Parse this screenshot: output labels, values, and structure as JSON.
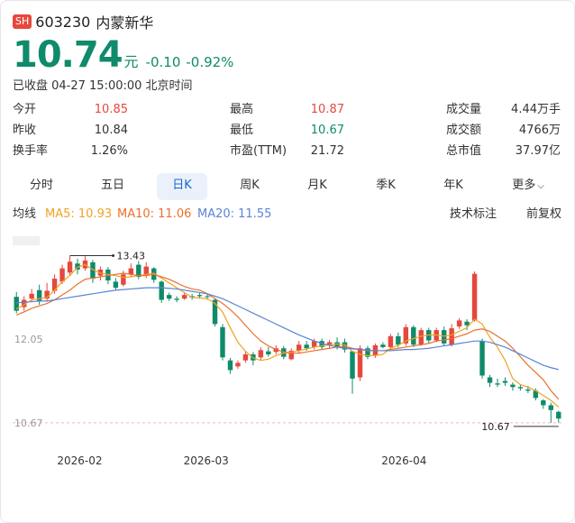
{
  "header": {
    "exchange": "SH",
    "code": "603230",
    "name": "内蒙新华"
  },
  "quote": {
    "price": "10.74",
    "unit": "元",
    "change": "-0.10",
    "change_pct": "-0.92%"
  },
  "status": "已收盘 04-27 15:00:00 北京时间",
  "stats": [
    {
      "label": "今开",
      "value": "10.85",
      "color": "red"
    },
    {
      "label": "最高",
      "value": "10.87",
      "color": "red"
    },
    {
      "label": "成交量",
      "value": "4.44万手",
      "color": "dark"
    },
    {
      "label": "昨收",
      "value": "10.84",
      "color": "dark"
    },
    {
      "label": "最低",
      "value": "10.67",
      "color": "green"
    },
    {
      "label": "成交额",
      "value": "4766万",
      "color": "dark"
    },
    {
      "label": "换手率",
      "value": "1.26%",
      "color": "dark"
    },
    {
      "label": "市盈(TTM)",
      "value": "21.72",
      "color": "dark"
    },
    {
      "label": "总市值",
      "value": "37.97亿",
      "color": "dark"
    }
  ],
  "tabs": [
    "分时",
    "五日",
    "日K",
    "周K",
    "月K",
    "季K",
    "年K",
    "更多"
  ],
  "active_tab": "日K",
  "ma": {
    "label": "均线",
    "ma5": "MA5: 10.93",
    "ma10": "MA10: 11.06",
    "ma20": "MA20: 11.55",
    "tech": "技术标注",
    "adjust": "前复权"
  },
  "colors": {
    "up": "#e5483d",
    "down": "#0f8b6b",
    "ma5": "#f0a322",
    "ma10": "#e8712e",
    "ma20": "#5b84d6"
  },
  "chart_data": {
    "type": "candlestick",
    "y_ticks": [
      "12.05",
      "10.67"
    ],
    "x_labels": [
      "2026-02",
      "2026-03",
      "2026-04"
    ],
    "annotations": {
      "high": "13.43",
      "low": "10.67"
    },
    "ylim": [
      10.4,
      13.75
    ],
    "candles": [
      [
        12.75,
        12.52,
        12.83,
        12.48
      ],
      [
        12.58,
        12.7,
        12.76,
        12.52
      ],
      [
        12.72,
        12.8,
        12.88,
        12.66
      ],
      [
        12.86,
        12.68,
        12.95,
        12.62
      ],
      [
        12.72,
        12.85,
        12.98,
        12.68
      ],
      [
        12.85,
        13.05,
        13.12,
        12.8
      ],
      [
        13.0,
        13.22,
        13.28,
        12.96
      ],
      [
        13.15,
        13.33,
        13.43,
        13.1
      ],
      [
        13.3,
        13.2,
        13.38,
        13.12
      ],
      [
        13.22,
        13.35,
        13.42,
        13.18
      ],
      [
        13.32,
        13.05,
        13.36,
        12.98
      ],
      [
        13.1,
        13.2,
        13.25,
        13.02
      ],
      [
        13.2,
        13.02,
        13.24,
        12.96
      ],
      [
        13.0,
        12.9,
        13.06,
        12.86
      ],
      [
        12.95,
        13.12,
        13.18,
        12.92
      ],
      [
        13.12,
        13.22,
        13.3,
        13.08
      ],
      [
        13.28,
        13.08,
        13.34,
        13.04
      ],
      [
        13.1,
        13.25,
        13.32,
        13.06
      ],
      [
        13.22,
        13.03,
        13.24,
        12.98
      ],
      [
        13.0,
        12.7,
        13.02,
        12.65
      ],
      [
        12.78,
        12.72,
        12.82,
        12.68
      ],
      [
        12.72,
        12.7,
        12.76,
        12.66
      ],
      [
        12.72,
        12.78,
        12.82,
        12.7
      ],
      [
        12.76,
        12.74,
        12.8,
        12.7
      ],
      [
        12.78,
        12.76,
        12.82,
        12.72
      ],
      [
        12.76,
        12.75,
        12.8,
        12.7
      ],
      [
        12.7,
        12.3,
        12.72,
        12.26
      ],
      [
        12.25,
        11.75,
        12.3,
        11.7
      ],
      [
        11.7,
        11.54,
        11.74,
        11.48
      ],
      [
        11.6,
        11.66,
        11.7,
        11.56
      ],
      [
        11.7,
        11.8,
        11.86,
        11.66
      ],
      [
        11.8,
        11.7,
        11.84,
        11.62
      ],
      [
        11.75,
        11.87,
        11.92,
        11.7
      ],
      [
        11.85,
        11.8,
        11.92,
        11.76
      ],
      [
        11.84,
        11.9,
        11.95,
        11.8
      ],
      [
        11.9,
        11.76,
        11.94,
        11.72
      ],
      [
        11.72,
        11.86,
        11.9,
        11.7
      ],
      [
        11.86,
        11.96,
        12.02,
        11.82
      ],
      [
        11.96,
        11.9,
        12.02,
        11.86
      ],
      [
        11.92,
        12.02,
        12.06,
        11.88
      ],
      [
        12.02,
        11.92,
        12.06,
        11.88
      ],
      [
        11.95,
        12.0,
        12.04,
        11.9
      ],
      [
        12.0,
        11.93,
        12.08,
        11.88
      ],
      [
        12.0,
        11.88,
        12.06,
        11.83
      ],
      [
        11.85,
        11.4,
        11.86,
        11.15
      ],
      [
        11.42,
        11.9,
        11.95,
        11.36
      ],
      [
        11.9,
        11.76,
        11.94,
        11.72
      ],
      [
        11.78,
        11.95,
        11.98,
        11.74
      ],
      [
        11.96,
        11.92,
        12.0,
        11.9
      ],
      [
        11.92,
        12.1,
        12.14,
        11.88
      ],
      [
        12.1,
        11.96,
        12.16,
        11.92
      ],
      [
        11.98,
        12.25,
        12.3,
        11.94
      ],
      [
        12.25,
        11.96,
        12.28,
        11.92
      ],
      [
        11.96,
        12.2,
        12.24,
        11.94
      ],
      [
        12.2,
        12.03,
        12.24,
        11.98
      ],
      [
        12.03,
        12.2,
        12.24,
        12.0
      ],
      [
        12.2,
        11.98,
        12.26,
        11.94
      ],
      [
        11.96,
        12.23,
        12.3,
        11.93
      ],
      [
        12.26,
        12.36,
        12.4,
        12.22
      ],
      [
        12.34,
        12.28,
        12.38,
        12.2
      ],
      [
        12.36,
        13.13,
        13.17,
        12.34
      ],
      [
        12.02,
        11.45,
        12.06,
        11.4
      ],
      [
        11.42,
        11.33,
        11.46,
        11.26
      ],
      [
        11.32,
        11.3,
        11.4,
        11.26
      ],
      [
        11.36,
        11.33,
        11.42,
        11.28
      ],
      [
        11.3,
        11.26,
        11.34,
        11.2
      ],
      [
        11.26,
        11.24,
        11.3,
        11.2
      ],
      [
        11.22,
        11.2,
        11.28,
        11.16
      ],
      [
        11.2,
        11.08,
        11.24,
        11.04
      ],
      [
        11.04,
        10.96,
        11.06,
        10.9
      ],
      [
        10.96,
        10.88,
        11.0,
        10.67
      ],
      [
        10.85,
        10.74,
        10.87,
        10.67
      ]
    ],
    "ma5": [
      12.55,
      12.62,
      12.7,
      12.72,
      12.74,
      12.86,
      13.0,
      13.1,
      13.24,
      13.28,
      13.2,
      13.14,
      13.12,
      13.1,
      13.07,
      13.08,
      13.1,
      13.12,
      13.14,
      13.06,
      12.98,
      12.9,
      12.82,
      12.74,
      12.73,
      12.72,
      12.64,
      12.5,
      12.24,
      12.0,
      11.85,
      11.74,
      11.7,
      11.72,
      11.78,
      11.82,
      11.84,
      11.86,
      11.89,
      11.92,
      11.94,
      11.96,
      11.97,
      11.96,
      11.85,
      11.8,
      11.78,
      11.78,
      11.8,
      11.9,
      11.95,
      12.02,
      12.06,
      12.1,
      12.12,
      12.12,
      12.1,
      12.12,
      12.18,
      12.24,
      12.38,
      12.3,
      12.08,
      11.92,
      11.7,
      11.4,
      11.3,
      11.26,
      11.2,
      11.12,
      11.04,
      10.93
    ],
    "ma10": [
      12.45,
      12.5,
      12.56,
      12.6,
      12.64,
      12.7,
      12.78,
      12.86,
      12.96,
      13.04,
      13.06,
      13.08,
      13.1,
      13.12,
      13.14,
      13.12,
      13.1,
      13.1,
      13.12,
      13.08,
      13.04,
      12.98,
      12.92,
      12.88,
      12.86,
      12.8,
      12.72,
      12.64,
      12.54,
      12.42,
      12.28,
      12.14,
      12.02,
      11.94,
      11.88,
      11.84,
      11.82,
      11.82,
      11.84,
      11.86,
      11.88,
      11.9,
      11.92,
      11.93,
      11.9,
      11.88,
      11.86,
      11.86,
      11.86,
      11.88,
      11.9,
      11.92,
      11.94,
      11.96,
      11.98,
      12.02,
      12.04,
      12.06,
      12.1,
      12.14,
      12.2,
      12.22,
      12.18,
      12.1,
      12.02,
      11.9,
      11.76,
      11.62,
      11.5,
      11.38,
      11.2,
      11.06
    ],
    "ma20": [
      12.65,
      12.66,
      12.67,
      12.68,
      12.68,
      12.7,
      12.72,
      12.74,
      12.76,
      12.78,
      12.8,
      12.82,
      12.84,
      12.86,
      12.87,
      12.88,
      12.89,
      12.9,
      12.9,
      12.9,
      12.89,
      12.88,
      12.86,
      12.84,
      12.82,
      12.8,
      12.76,
      12.72,
      12.66,
      12.6,
      12.54,
      12.48,
      12.42,
      12.36,
      12.3,
      12.24,
      12.18,
      12.12,
      12.07,
      12.02,
      11.98,
      11.95,
      11.92,
      11.9,
      11.89,
      11.88,
      11.87,
      11.86,
      11.86,
      11.86,
      11.87,
      11.88,
      11.88,
      11.89,
      11.9,
      11.92,
      11.94,
      11.96,
      11.98,
      12.0,
      12.02,
      12.02,
      12.0,
      11.96,
      11.92,
      11.86,
      11.8,
      11.74,
      11.68,
      11.62,
      11.58,
      11.55
    ]
  }
}
